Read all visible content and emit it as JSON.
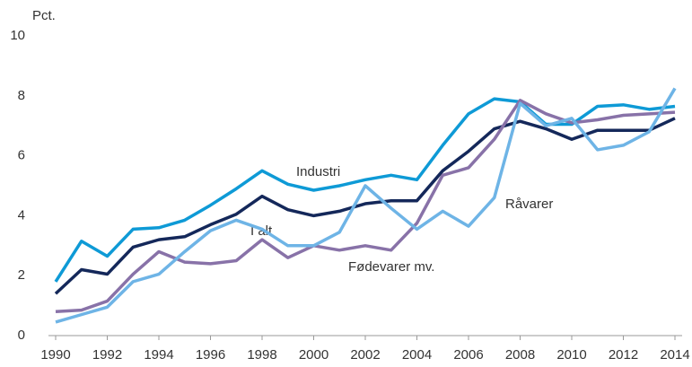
{
  "chart_data": {
    "type": "line",
    "y_label": "Pct.",
    "x": [
      1990,
      1991,
      1992,
      1993,
      1994,
      1995,
      1996,
      1997,
      1998,
      1999,
      2000,
      2001,
      2002,
      2003,
      2004,
      2005,
      2006,
      2007,
      2008,
      2009,
      2010,
      2011,
      2012,
      2013,
      2014
    ],
    "xlim": [
      1990,
      2014
    ],
    "xticks": [
      1990,
      1992,
      1994,
      1996,
      1998,
      2000,
      2002,
      2004,
      2006,
      2008,
      2010,
      2012,
      2014
    ],
    "ylim": [
      0,
      10
    ],
    "yticks": [
      0,
      2,
      4,
      6,
      8,
      10
    ],
    "grid": false,
    "series": [
      {
        "name": "Industri",
        "color": "#0e9ad6",
        "values": [
          1.8,
          3.15,
          2.65,
          3.55,
          3.6,
          3.85,
          4.35,
          4.9,
          5.5,
          5.05,
          4.85,
          5.0,
          5.2,
          5.35,
          5.2,
          6.35,
          7.4,
          7.9,
          7.8,
          7.05,
          7.05,
          7.65,
          7.7,
          7.55,
          7.65
        ]
      },
      {
        "name": "I alt",
        "color": "#14285a",
        "values": [
          1.4,
          2.2,
          2.05,
          2.95,
          3.2,
          3.3,
          3.7,
          4.05,
          4.65,
          4.2,
          4.0,
          4.15,
          4.4,
          4.5,
          4.5,
          5.5,
          6.15,
          6.9,
          7.15,
          6.9,
          6.55,
          6.85,
          6.85,
          6.85,
          7.25
        ]
      },
      {
        "name": "Fødevarer mv.",
        "color": "#8872a8",
        "values": [
          0.8,
          0.85,
          1.15,
          2.05,
          2.8,
          2.45,
          2.4,
          2.5,
          3.2,
          2.6,
          3.0,
          2.85,
          3.0,
          2.85,
          3.75,
          5.35,
          5.6,
          6.55,
          7.85,
          7.4,
          7.1,
          7.2,
          7.35,
          7.4,
          7.45
        ]
      },
      {
        "name": "Råvarer",
        "color": "#6eb4e6",
        "values": [
          0.45,
          0.7,
          0.95,
          1.8,
          2.05,
          2.8,
          3.5,
          3.85,
          3.55,
          3.0,
          3.0,
          3.45,
          5.0,
          4.25,
          3.55,
          4.15,
          3.65,
          4.6,
          7.75,
          7.0,
          7.25,
          6.2,
          6.35,
          6.8,
          8.25
        ]
      }
    ]
  }
}
